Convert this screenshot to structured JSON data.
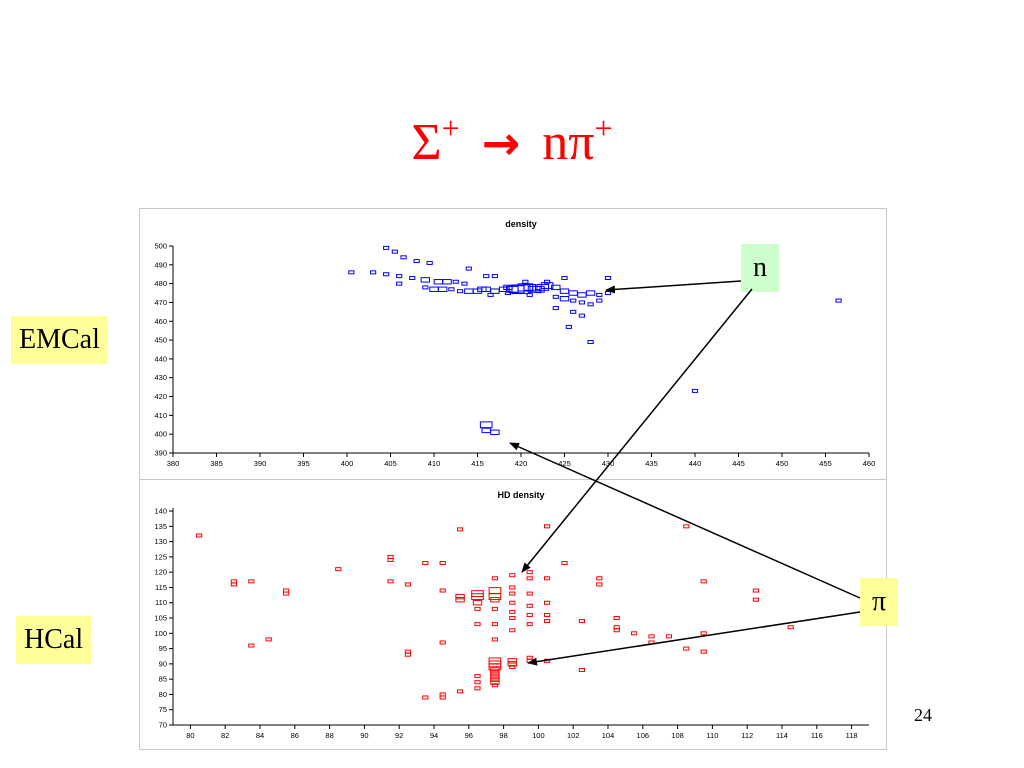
{
  "slide": {
    "title_parts": {
      "sigma": "Σ",
      "plus1": "+",
      "arrow": "→",
      "n": "nπ",
      "plus2": "+"
    },
    "page_number": "24",
    "labels": {
      "emcal": "EMCal",
      "hcal": "HCal",
      "n": "n",
      "pi": "π"
    },
    "colors": {
      "title": "#ff0000",
      "emcal_marks": "#0000ff",
      "hcal_marks": "#ff0000",
      "callout_yellow": "#ffff99",
      "callout_green": "#ccffcc"
    }
  },
  "chart_data": [
    {
      "type": "scatter",
      "title": "density",
      "xlabel": "",
      "ylabel": "",
      "xlim": [
        380,
        460
      ],
      "ylim": [
        390,
        500
      ],
      "xticks": [
        380,
        385,
        390,
        395,
        400,
        405,
        410,
        415,
        420,
        425,
        430,
        435,
        440,
        445,
        450,
        455,
        460
      ],
      "yticks": [
        390,
        400,
        410,
        420,
        430,
        440,
        450,
        460,
        470,
        480,
        490,
        500
      ],
      "marker": "box",
      "color": "#0000ff",
      "points": [
        [
          404.5,
          499,
          1
        ],
        [
          405.5,
          497,
          1
        ],
        [
          406.5,
          494,
          1
        ],
        [
          408,
          492,
          1
        ],
        [
          409.5,
          491,
          1
        ],
        [
          414,
          488,
          1
        ],
        [
          400.5,
          486,
          1
        ],
        [
          403,
          486,
          1
        ],
        [
          404.5,
          485,
          1
        ],
        [
          406,
          484,
          1
        ],
        [
          407.5,
          483,
          1
        ],
        [
          409,
          482,
          2
        ],
        [
          410.5,
          481,
          2
        ],
        [
          411.5,
          481,
          2
        ],
        [
          412.5,
          481,
          1
        ],
        [
          413.5,
          480,
          1
        ],
        [
          406,
          480,
          1
        ],
        [
          409,
          478,
          1
        ],
        [
          410,
          477,
          2
        ],
        [
          411,
          477,
          2
        ],
        [
          412,
          477,
          1
        ],
        [
          413,
          476,
          1
        ],
        [
          414,
          476,
          2
        ],
        [
          415,
          476,
          2
        ],
        [
          415.5,
          477,
          2
        ],
        [
          416,
          477,
          2
        ],
        [
          417,
          476,
          2
        ],
        [
          418,
          477,
          2
        ],
        [
          418.5,
          478,
          2
        ],
        [
          419,
          477,
          3
        ],
        [
          419.5,
          477,
          4
        ],
        [
          420,
          477,
          5
        ],
        [
          420.5,
          478,
          4
        ],
        [
          421,
          478,
          3
        ],
        [
          421.5,
          477,
          3
        ],
        [
          422,
          477,
          3
        ],
        [
          422.5,
          478,
          3
        ],
        [
          423,
          479,
          3
        ],
        [
          424,
          478,
          2
        ],
        [
          425,
          476,
          2
        ],
        [
          426,
          475,
          2
        ],
        [
          427,
          474,
          2
        ],
        [
          428,
          475,
          2
        ],
        [
          429,
          474,
          1
        ],
        [
          430,
          475,
          1
        ],
        [
          416,
          484,
          1
        ],
        [
          417,
          484,
          1
        ],
        [
          420.5,
          481,
          1
        ],
        [
          423,
          481,
          1
        ],
        [
          425,
          483,
          1
        ],
        [
          430,
          483,
          1
        ],
        [
          416.5,
          474,
          1
        ],
        [
          418.5,
          475,
          1
        ],
        [
          421,
          474,
          1
        ],
        [
          422,
          476,
          1
        ],
        [
          424,
          473,
          1
        ],
        [
          425,
          472,
          2
        ],
        [
          426,
          471,
          1
        ],
        [
          427,
          470,
          1
        ],
        [
          428,
          469,
          1
        ],
        [
          429,
          471,
          1
        ],
        [
          424,
          467,
          1
        ],
        [
          426,
          465,
          1
        ],
        [
          427,
          463,
          1
        ],
        [
          425.5,
          457,
          1
        ],
        [
          428,
          449,
          1
        ],
        [
          440,
          423,
          1
        ],
        [
          456.5,
          471,
          1
        ],
        [
          416,
          405,
          3
        ],
        [
          416,
          402,
          2
        ],
        [
          417,
          401,
          2
        ]
      ]
    },
    {
      "type": "scatter",
      "title": "HD density",
      "xlabel": "",
      "ylabel": "",
      "xlim": [
        79,
        119
      ],
      "ylim": [
        70,
        141
      ],
      "xticks": [
        80,
        82,
        84,
        86,
        88,
        90,
        92,
        94,
        96,
        98,
        100,
        102,
        104,
        106,
        108,
        110,
        112,
        114,
        116,
        118
      ],
      "yticks": [
        70,
        75,
        80,
        85,
        90,
        95,
        100,
        105,
        110,
        115,
        120,
        125,
        130,
        135,
        140
      ],
      "marker": "box",
      "color": "#ff0000",
      "points": [
        [
          80.5,
          132,
          1
        ],
        [
          82.5,
          117,
          1
        ],
        [
          82.5,
          116,
          1
        ],
        [
          83.5,
          117,
          1
        ],
        [
          83.5,
          96,
          1
        ],
        [
          84.5,
          98,
          1
        ],
        [
          85.5,
          114,
          1
        ],
        [
          85.5,
          113,
          1
        ],
        [
          88.5,
          121,
          1
        ],
        [
          91.5,
          125,
          1
        ],
        [
          91.5,
          124,
          1
        ],
        [
          91.5,
          117,
          1
        ],
        [
          92.5,
          116,
          1
        ],
        [
          92.5,
          94,
          1
        ],
        [
          92.5,
          93,
          1
        ],
        [
          93.5,
          123,
          1
        ],
        [
          93.5,
          79,
          1
        ],
        [
          94.5,
          123,
          1
        ],
        [
          94.5,
          114,
          1
        ],
        [
          94.5,
          97,
          1
        ],
        [
          94.5,
          80,
          1
        ],
        [
          94.5,
          79,
          1
        ],
        [
          95.5,
          134,
          1
        ],
        [
          95.5,
          112,
          2
        ],
        [
          95.5,
          111,
          2
        ],
        [
          95.5,
          81,
          1
        ],
        [
          96.5,
          113,
          3
        ],
        [
          96.5,
          112,
          3
        ],
        [
          96.5,
          110,
          2
        ],
        [
          96.5,
          108,
          1
        ],
        [
          96.5,
          103,
          1
        ],
        [
          96.5,
          86,
          1
        ],
        [
          96.5,
          84,
          1
        ],
        [
          96.5,
          82,
          1
        ],
        [
          97.5,
          118,
          1
        ],
        [
          97.5,
          114,
          3
        ],
        [
          97.5,
          112,
          3
        ],
        [
          97.5,
          111,
          2
        ],
        [
          97.5,
          108,
          1
        ],
        [
          97.5,
          103,
          1
        ],
        [
          97.5,
          98,
          1
        ],
        [
          97.5,
          91,
          3
        ],
        [
          97.5,
          90,
          3
        ],
        [
          97.5,
          89,
          3
        ],
        [
          97.5,
          88,
          2
        ],
        [
          97.5,
          87,
          2
        ],
        [
          97.5,
          86,
          2
        ],
        [
          97.5,
          85,
          2
        ],
        [
          97.5,
          84,
          2
        ],
        [
          97.5,
          83,
          1
        ],
        [
          98.5,
          119,
          1
        ],
        [
          98.5,
          115,
          1
        ],
        [
          98.5,
          113,
          1
        ],
        [
          98.5,
          110,
          1
        ],
        [
          98.5,
          107,
          1
        ],
        [
          98.5,
          105,
          1
        ],
        [
          98.5,
          101,
          1
        ],
        [
          98.5,
          91,
          2
        ],
        [
          98.5,
          90,
          2
        ],
        [
          98.5,
          89,
          1
        ],
        [
          99.5,
          120,
          1
        ],
        [
          99.5,
          118,
          1
        ],
        [
          99.5,
          113,
          1
        ],
        [
          99.5,
          109,
          1
        ],
        [
          99.5,
          106,
          1
        ],
        [
          99.5,
          103,
          1
        ],
        [
          99.5,
          92,
          1
        ],
        [
          99.5,
          91,
          1
        ],
        [
          100.5,
          118,
          1
        ],
        [
          100.5,
          110,
          1
        ],
        [
          100.5,
          106,
          1
        ],
        [
          100.5,
          104,
          1
        ],
        [
          100.5,
          91,
          1
        ],
        [
          100.5,
          135,
          1
        ],
        [
          101.5,
          123,
          1
        ],
        [
          102.5,
          104,
          1
        ],
        [
          102.5,
          88,
          1
        ],
        [
          103.5,
          118,
          1
        ],
        [
          103.5,
          116,
          1
        ],
        [
          104.5,
          105,
          1
        ],
        [
          104.5,
          102,
          1
        ],
        [
          104.5,
          101,
          1
        ],
        [
          105.5,
          100,
          1
        ],
        [
          106.5,
          99,
          1
        ],
        [
          106.5,
          97,
          1
        ],
        [
          107.5,
          99,
          1
        ],
        [
          108.5,
          135,
          1
        ],
        [
          108.5,
          95,
          1
        ],
        [
          109.5,
          117,
          1
        ],
        [
          109.5,
          100,
          1
        ],
        [
          109.5,
          94,
          1
        ],
        [
          112.5,
          114,
          1
        ],
        [
          112.5,
          111,
          1
        ],
        [
          114.5,
          102,
          1
        ]
      ]
    }
  ]
}
